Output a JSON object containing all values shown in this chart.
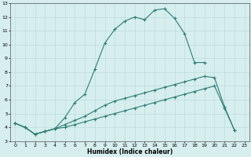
{
  "xlabel": "Humidex (Indice chaleur)",
  "background_color": "#d6eeee",
  "grid_color": "#b8d8d8",
  "line_color": "#2e7d72",
  "xlim": [
    -0.5,
    23.5
  ],
  "ylim": [
    3,
    13
  ],
  "xticks": [
    0,
    1,
    2,
    3,
    4,
    5,
    6,
    7,
    8,
    9,
    10,
    11,
    12,
    13,
    14,
    15,
    16,
    17,
    18,
    19,
    20,
    21,
    22,
    23
  ],
  "yticks": [
    3,
    4,
    5,
    6,
    7,
    8,
    9,
    10,
    11,
    12,
    13
  ],
  "line1_x": [
    0,
    1,
    2,
    3,
    4,
    5,
    6,
    7,
    8,
    9,
    10,
    11,
    12,
    13,
    14,
    15,
    16,
    17,
    18,
    19
  ],
  "line1_y": [
    4.3,
    4.0,
    3.5,
    3.7,
    3.9,
    4.7,
    5.8,
    6.4,
    8.2,
    10.1,
    11.1,
    11.7,
    12.0,
    11.8,
    12.5,
    12.6,
    11.9,
    10.8,
    8.7,
    8.7
  ],
  "line2_x": [
    0,
    1,
    2,
    3,
    4,
    5,
    6,
    7,
    8,
    9,
    10,
    11,
    12,
    13,
    14,
    15,
    16,
    17,
    18,
    19,
    20,
    21,
    22
  ],
  "line2_y": [
    4.3,
    4.0,
    3.5,
    3.7,
    3.9,
    4.2,
    4.5,
    4.8,
    5.2,
    5.6,
    5.9,
    6.1,
    6.3,
    6.5,
    6.7,
    6.9,
    7.1,
    7.3,
    7.5,
    7.7,
    7.6,
    5.5,
    3.8
  ],
  "line3_x": [
    0,
    1,
    2,
    3,
    4,
    5,
    6,
    7,
    8,
    9,
    10,
    11,
    12,
    13,
    14,
    15,
    16,
    17,
    18,
    19,
    20,
    21,
    22
  ],
  "line3_y": [
    4.3,
    4.0,
    3.5,
    3.7,
    3.9,
    4.0,
    4.2,
    4.4,
    4.6,
    4.8,
    5.0,
    5.2,
    5.4,
    5.6,
    5.8,
    6.0,
    6.2,
    6.4,
    6.6,
    6.8,
    7.0,
    5.4,
    3.8
  ]
}
